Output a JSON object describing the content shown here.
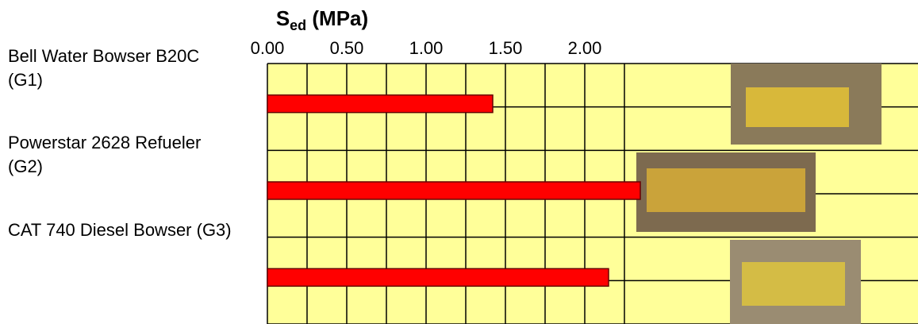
{
  "chart_data": {
    "type": "hbar",
    "title": {
      "main": "S",
      "sub": "ed",
      "rest": " (MPa)"
    },
    "categories": [
      "Bell Water Bowser B20C (G1)",
      "Powerstar 2628 Refueler (G2)",
      "CAT 740 Diesel Bowser (G3)"
    ],
    "values": [
      1.42,
      2.35,
      2.15
    ],
    "color": "#ff0000",
    "xlim": [
      0,
      4.1
    ],
    "xticks": [
      {
        "value": 0,
        "label": "0.00"
      },
      {
        "value": 0.5,
        "label": "0.50"
      },
      {
        "value": 1,
        "label": "1.00"
      },
      {
        "value": 1.5,
        "label": "1.50"
      },
      {
        "value": 2,
        "label": "2.00"
      }
    ],
    "xminor": [
      0.25,
      0.75,
      1.25,
      1.75,
      2.25
    ],
    "grid": true
  }
}
